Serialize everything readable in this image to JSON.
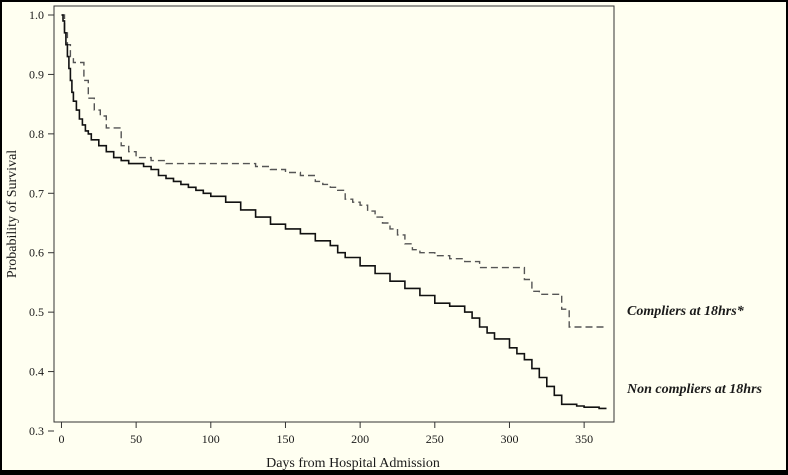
{
  "chart_data": {
    "type": "line",
    "title": "",
    "xlabel": "Days from Hospital Admission",
    "ylabel": "Probability of Survival",
    "xlim": [
      -5,
      370
    ],
    "ylim": [
      0.3,
      1.0
    ],
    "x_ticks": [
      0,
      50,
      100,
      150,
      200,
      250,
      300,
      350
    ],
    "y_ticks": [
      0.3,
      0.4,
      0.5,
      0.6,
      0.7,
      0.8,
      0.9,
      1.0
    ],
    "x_tick_labels": [
      "0",
      "50",
      "100",
      "150",
      "200",
      "250",
      "300",
      "350"
    ],
    "y_tick_labels": [
      "0.3",
      "0.4",
      "0.5",
      "0.6",
      "0.7",
      "0.8",
      "0.9",
      "1.0"
    ],
    "grid": false,
    "series": [
      {
        "name": "Compliers at 18hrs*",
        "style": "dashed",
        "color": "#555555",
        "x": [
          0,
          2,
          4,
          6,
          8,
          12,
          15,
          18,
          22,
          26,
          30,
          35,
          40,
          45,
          50,
          60,
          70,
          80,
          90,
          100,
          110,
          120,
          130,
          140,
          150,
          160,
          170,
          175,
          180,
          185,
          190,
          195,
          200,
          205,
          210,
          215,
          220,
          225,
          230,
          235,
          240,
          250,
          260,
          270,
          280,
          290,
          300,
          305,
          310,
          315,
          320,
          330,
          335,
          340,
          345,
          350,
          360,
          365
        ],
        "y": [
          1.0,
          0.97,
          0.95,
          0.93,
          0.92,
          0.92,
          0.89,
          0.86,
          0.84,
          0.83,
          0.81,
          0.81,
          0.78,
          0.77,
          0.76,
          0.755,
          0.75,
          0.75,
          0.75,
          0.75,
          0.75,
          0.75,
          0.745,
          0.74,
          0.735,
          0.73,
          0.72,
          0.715,
          0.71,
          0.705,
          0.69,
          0.685,
          0.68,
          0.67,
          0.66,
          0.65,
          0.64,
          0.63,
          0.615,
          0.605,
          0.6,
          0.595,
          0.59,
          0.585,
          0.575,
          0.575,
          0.575,
          0.575,
          0.555,
          0.535,
          0.53,
          0.53,
          0.505,
          0.475,
          0.475,
          0.475,
          0.475,
          0.475
        ]
      },
      {
        "name": "Non compliers at 18hrs",
        "style": "solid",
        "color": "#111111",
        "x": [
          0,
          1,
          2,
          3,
          4,
          5,
          6,
          7,
          8,
          10,
          12,
          14,
          16,
          18,
          20,
          25,
          30,
          35,
          40,
          45,
          50,
          55,
          60,
          65,
          70,
          75,
          80,
          85,
          90,
          95,
          100,
          110,
          120,
          130,
          140,
          150,
          160,
          170,
          180,
          185,
          190,
          200,
          210,
          220,
          230,
          240,
          250,
          260,
          270,
          275,
          280,
          285,
          290,
          300,
          305,
          310,
          315,
          320,
          325,
          330,
          335,
          340,
          345,
          350,
          360,
          365
        ],
        "y": [
          1.0,
          0.99,
          0.97,
          0.95,
          0.93,
          0.91,
          0.89,
          0.87,
          0.855,
          0.84,
          0.825,
          0.815,
          0.805,
          0.8,
          0.79,
          0.78,
          0.77,
          0.76,
          0.755,
          0.75,
          0.75,
          0.745,
          0.74,
          0.73,
          0.725,
          0.72,
          0.715,
          0.71,
          0.705,
          0.7,
          0.695,
          0.685,
          0.672,
          0.66,
          0.648,
          0.64,
          0.632,
          0.62,
          0.612,
          0.6,
          0.592,
          0.578,
          0.565,
          0.552,
          0.54,
          0.528,
          0.515,
          0.51,
          0.5,
          0.49,
          0.475,
          0.465,
          0.455,
          0.44,
          0.43,
          0.42,
          0.405,
          0.39,
          0.375,
          0.36,
          0.345,
          0.345,
          0.342,
          0.34,
          0.338,
          0.338
        ]
      }
    ]
  }
}
